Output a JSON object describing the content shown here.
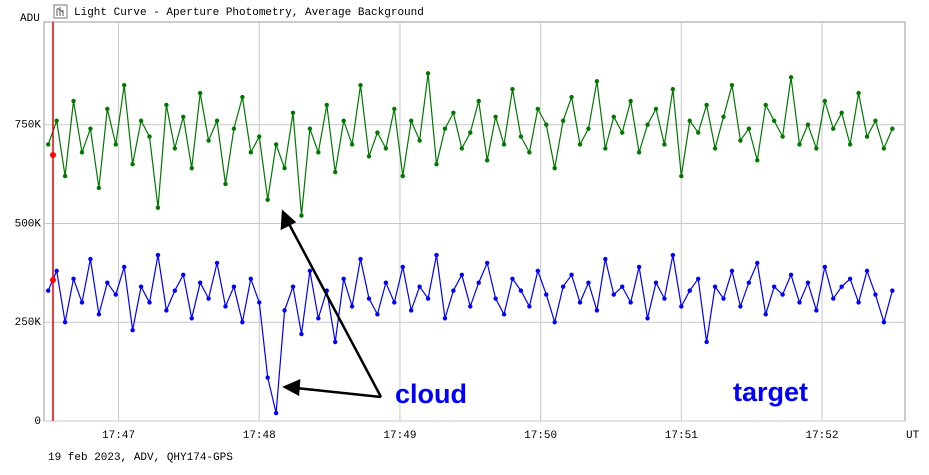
{
  "chart_data": {
    "type": "line",
    "title": "Light Curve - Aperture Photometry, Average Background",
    "footer": "19 feb 2023, ADV, QHY174-GPS",
    "y_label": "ADU",
    "x_label": "UT",
    "annotations": [
      "cloud",
      "target"
    ],
    "x": [
      1066.5,
      1066.56,
      1066.62,
      1066.68,
      1066.74,
      1066.8,
      1066.86,
      1066.92,
      1066.98,
      1067.04,
      1067.1,
      1067.16,
      1067.22,
      1067.28,
      1067.34,
      1067.4,
      1067.46,
      1067.52,
      1067.58,
      1067.64,
      1067.7,
      1067.76,
      1067.82,
      1067.88,
      1067.94,
      1068,
      1068.06,
      1068.12,
      1068.18,
      1068.24,
      1068.3,
      1068.36,
      1068.42,
      1068.48,
      1068.54,
      1068.6,
      1068.66,
      1068.72,
      1068.78,
      1068.84,
      1068.9,
      1068.96,
      1069.02,
      1069.08,
      1069.14,
      1069.2,
      1069.26,
      1069.32,
      1069.38,
      1069.44,
      1069.5,
      1069.56,
      1069.62,
      1069.68,
      1069.74,
      1069.8,
      1069.86,
      1069.92,
      1069.98,
      1070.04,
      1070.1,
      1070.16,
      1070.22,
      1070.28,
      1070.34,
      1070.4,
      1070.46,
      1070.52,
      1070.58,
      1070.64,
      1070.7,
      1070.76,
      1070.82,
      1070.88,
      1070.94,
      1071,
      1071.06,
      1071.12,
      1071.18,
      1071.24,
      1071.3,
      1071.36,
      1071.42,
      1071.48,
      1071.54,
      1071.6,
      1071.66,
      1071.72,
      1071.78,
      1071.84,
      1071.9,
      1071.96,
      1072.02,
      1072.08,
      1072.14,
      1072.2,
      1072.26,
      1072.32,
      1072.38,
      1072.44,
      1072.5
    ],
    "series": [
      {
        "color": "#007800",
        "values": [
          700000,
          760000,
          620000,
          810000,
          680000,
          740000,
          590000,
          790000,
          700000,
          850000,
          650000,
          760000,
          720000,
          540000,
          800000,
          690000,
          770000,
          640000,
          830000,
          710000,
          760000,
          600000,
          740000,
          820000,
          680000,
          720000,
          560000,
          700000,
          640000,
          780000,
          520000,
          740000,
          680000,
          800000,
          630000,
          760000,
          700000,
          850000,
          670000,
          730000,
          690000,
          790000,
          620000,
          760000,
          710000,
          880000,
          650000,
          740000,
          780000,
          690000,
          730000,
          810000,
          660000,
          770000,
          700000,
          840000,
          720000,
          680000,
          790000,
          750000,
          640000,
          760000,
          820000,
          700000,
          740000,
          860000,
          690000,
          770000,
          730000,
          810000,
          680000,
          750000,
          790000,
          700000,
          840000,
          620000,
          760000,
          730000,
          800000,
          690000,
          770000,
          850000,
          710000,
          740000,
          660000,
          800000,
          760000,
          720000,
          870000,
          700000,
          750000,
          690000,
          810000,
          740000,
          780000,
          700000,
          830000,
          720000,
          760000,
          690000,
          740000
        ]
      },
      {
        "color": "#0000ff",
        "values": [
          330000,
          380000,
          250000,
          360000,
          300000,
          410000,
          270000,
          350000,
          320000,
          390000,
          230000,
          340000,
          300000,
          420000,
          280000,
          330000,
          370000,
          260000,
          350000,
          310000,
          400000,
          290000,
          340000,
          250000,
          360000,
          300000,
          110000,
          20000,
          280000,
          340000,
          220000,
          380000,
          260000,
          330000,
          200000,
          360000,
          290000,
          410000,
          310000,
          270000,
          350000,
          300000,
          390000,
          280000,
          340000,
          310000,
          420000,
          260000,
          330000,
          370000,
          290000,
          350000,
          400000,
          310000,
          270000,
          360000,
          330000,
          290000,
          380000,
          320000,
          250000,
          340000,
          370000,
          300000,
          350000,
          280000,
          410000,
          320000,
          340000,
          300000,
          390000,
          260000,
          350000,
          310000,
          420000,
          290000,
          330000,
          360000,
          200000,
          340000,
          310000,
          380000,
          290000,
          350000,
          400000,
          270000,
          340000,
          320000,
          370000,
          300000,
          350000,
          280000,
          390000,
          310000,
          340000,
          360000,
          300000,
          380000,
          320000,
          250000,
          330000
        ]
      }
    ],
    "xlim": [
      1066.47,
      1072.59
    ],
    "xticks": [
      {
        "value": 1067,
        "label": "17:47"
      },
      {
        "value": 1068,
        "label": "17:48"
      },
      {
        "value": 1069,
        "label": "17:49"
      },
      {
        "value": 1070,
        "label": "17:50"
      },
      {
        "value": 1071,
        "label": "17:51"
      },
      {
        "value": 1072,
        "label": "17:52"
      }
    ],
    "ylim": [
      0,
      1010000
    ],
    "yticks": [
      0,
      {
        "value": 250000,
        "label": "250K"
      },
      {
        "value": 500000,
        "label": "500K"
      },
      {
        "value": 750000,
        "label": "750K"
      }
    ],
    "grid": true
  }
}
